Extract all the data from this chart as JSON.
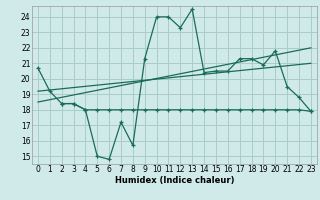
{
  "xlabel": "Humidex (Indice chaleur)",
  "bg_color": "#d0eaea",
  "grid_color": "#aacccc",
  "line_color": "#1a6b5a",
  "xlim": [
    -0.5,
    23.5
  ],
  "ylim": [
    14.5,
    24.7
  ],
  "yticks": [
    15,
    16,
    17,
    18,
    19,
    20,
    21,
    22,
    23,
    24
  ],
  "xticks": [
    0,
    1,
    2,
    3,
    4,
    5,
    6,
    7,
    8,
    9,
    10,
    11,
    12,
    13,
    14,
    15,
    16,
    17,
    18,
    19,
    20,
    21,
    22,
    23
  ],
  "line1_x": [
    0,
    1,
    2,
    3,
    4,
    5,
    6,
    7,
    8,
    9,
    10,
    11,
    12,
    13,
    14,
    15,
    16,
    17,
    18,
    19,
    20,
    21,
    22,
    23
  ],
  "line1_y": [
    20.7,
    19.2,
    18.4,
    18.4,
    18.0,
    15.0,
    14.8,
    17.2,
    15.7,
    21.3,
    24.0,
    24.0,
    23.3,
    24.5,
    20.4,
    20.5,
    20.5,
    21.3,
    21.3,
    20.9,
    21.8,
    19.5,
    18.8,
    17.9
  ],
  "line2_x": [
    2,
    3,
    4,
    5,
    6,
    7,
    8,
    9,
    10,
    11,
    12,
    13,
    14,
    15,
    16,
    17,
    18,
    19,
    20,
    21,
    22,
    23
  ],
  "line2_y": [
    18.4,
    18.4,
    18.0,
    18.0,
    18.0,
    18.0,
    18.0,
    18.0,
    18.0,
    18.0,
    18.0,
    18.0,
    18.0,
    18.0,
    18.0,
    18.0,
    18.0,
    18.0,
    18.0,
    18.0,
    18.0,
    17.9
  ],
  "line3_x": [
    0,
    23
  ],
  "line3_y": [
    18.5,
    22.0
  ],
  "line4_x": [
    0,
    23
  ],
  "line4_y": [
    19.2,
    21.0
  ]
}
